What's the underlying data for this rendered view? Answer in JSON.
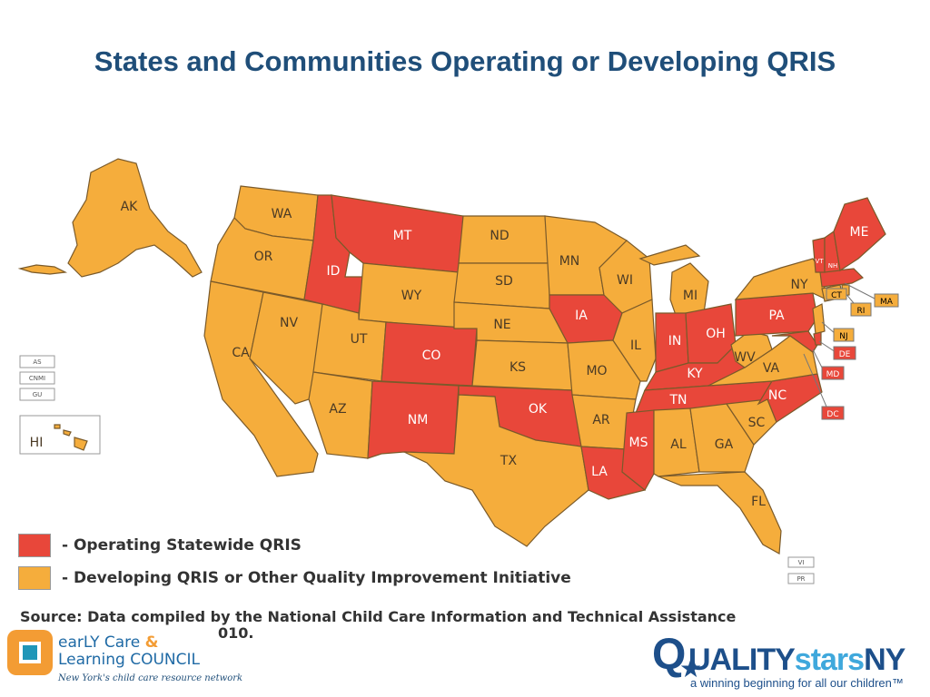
{
  "title": "States and Communities Operating or Developing QRIS",
  "legend": {
    "operating": {
      "label": "- Operating Statewide QRIS",
      "color": "#e8473a"
    },
    "developing": {
      "label": "- Developing QRIS or Other Quality Improvement Initiative",
      "color": "#f5ad3c"
    }
  },
  "states": {
    "WA": "WA",
    "OR": "OR",
    "CA": "CA",
    "NV": "NV",
    "ID": "ID",
    "MT": "MT",
    "WY": "WY",
    "UT": "UT",
    "AZ": "AZ",
    "CO": "CO",
    "NM": "NM",
    "ND": "ND",
    "SD": "SD",
    "NE": "NE",
    "KS": "KS",
    "OK": "OK",
    "TX": "TX",
    "MN": "MN",
    "IA": "IA",
    "MO": "MO",
    "AR": "AR",
    "LA": "LA",
    "WI": "WI",
    "IL": "IL",
    "MI": "MI",
    "IN": "IN",
    "OH": "OH",
    "KY": "KY",
    "TN": "TN",
    "MS": "MS",
    "AL": "AL",
    "GA": "GA",
    "FL": "FL",
    "SC": "SC",
    "NC": "NC",
    "VA": "VA",
    "WV": "WV",
    "PA": "PA",
    "NY": "NY",
    "ME": "ME",
    "NH": "NH",
    "VT": "VT",
    "AK": "AK",
    "HI": "HI"
  },
  "callouts": {
    "MA": "MA",
    "RI": "RI",
    "CT": "CT",
    "NJ": "NJ",
    "DE": "DE",
    "MD": "MD",
    "DC": "DC"
  },
  "territories": {
    "AS": "AS",
    "CNMI": "CNMI",
    "GU": "GU",
    "VI": "VI",
    "PR": "PR"
  },
  "source": {
    "line1": "Source: Data compiled by the National Child Care Information and Technical Assistance",
    "line2": "010."
  },
  "logo_left": {
    "name_part1": "earLY Care",
    "amp": "&",
    "name_part2": "Learning COUNCIL",
    "tagline": "New York's child care resource network"
  },
  "logo_right": {
    "q": "Q",
    "uality": "UALITY",
    "stars": "stars",
    "ny": "NY",
    "tagline": "a winning beginning for all our children™"
  }
}
